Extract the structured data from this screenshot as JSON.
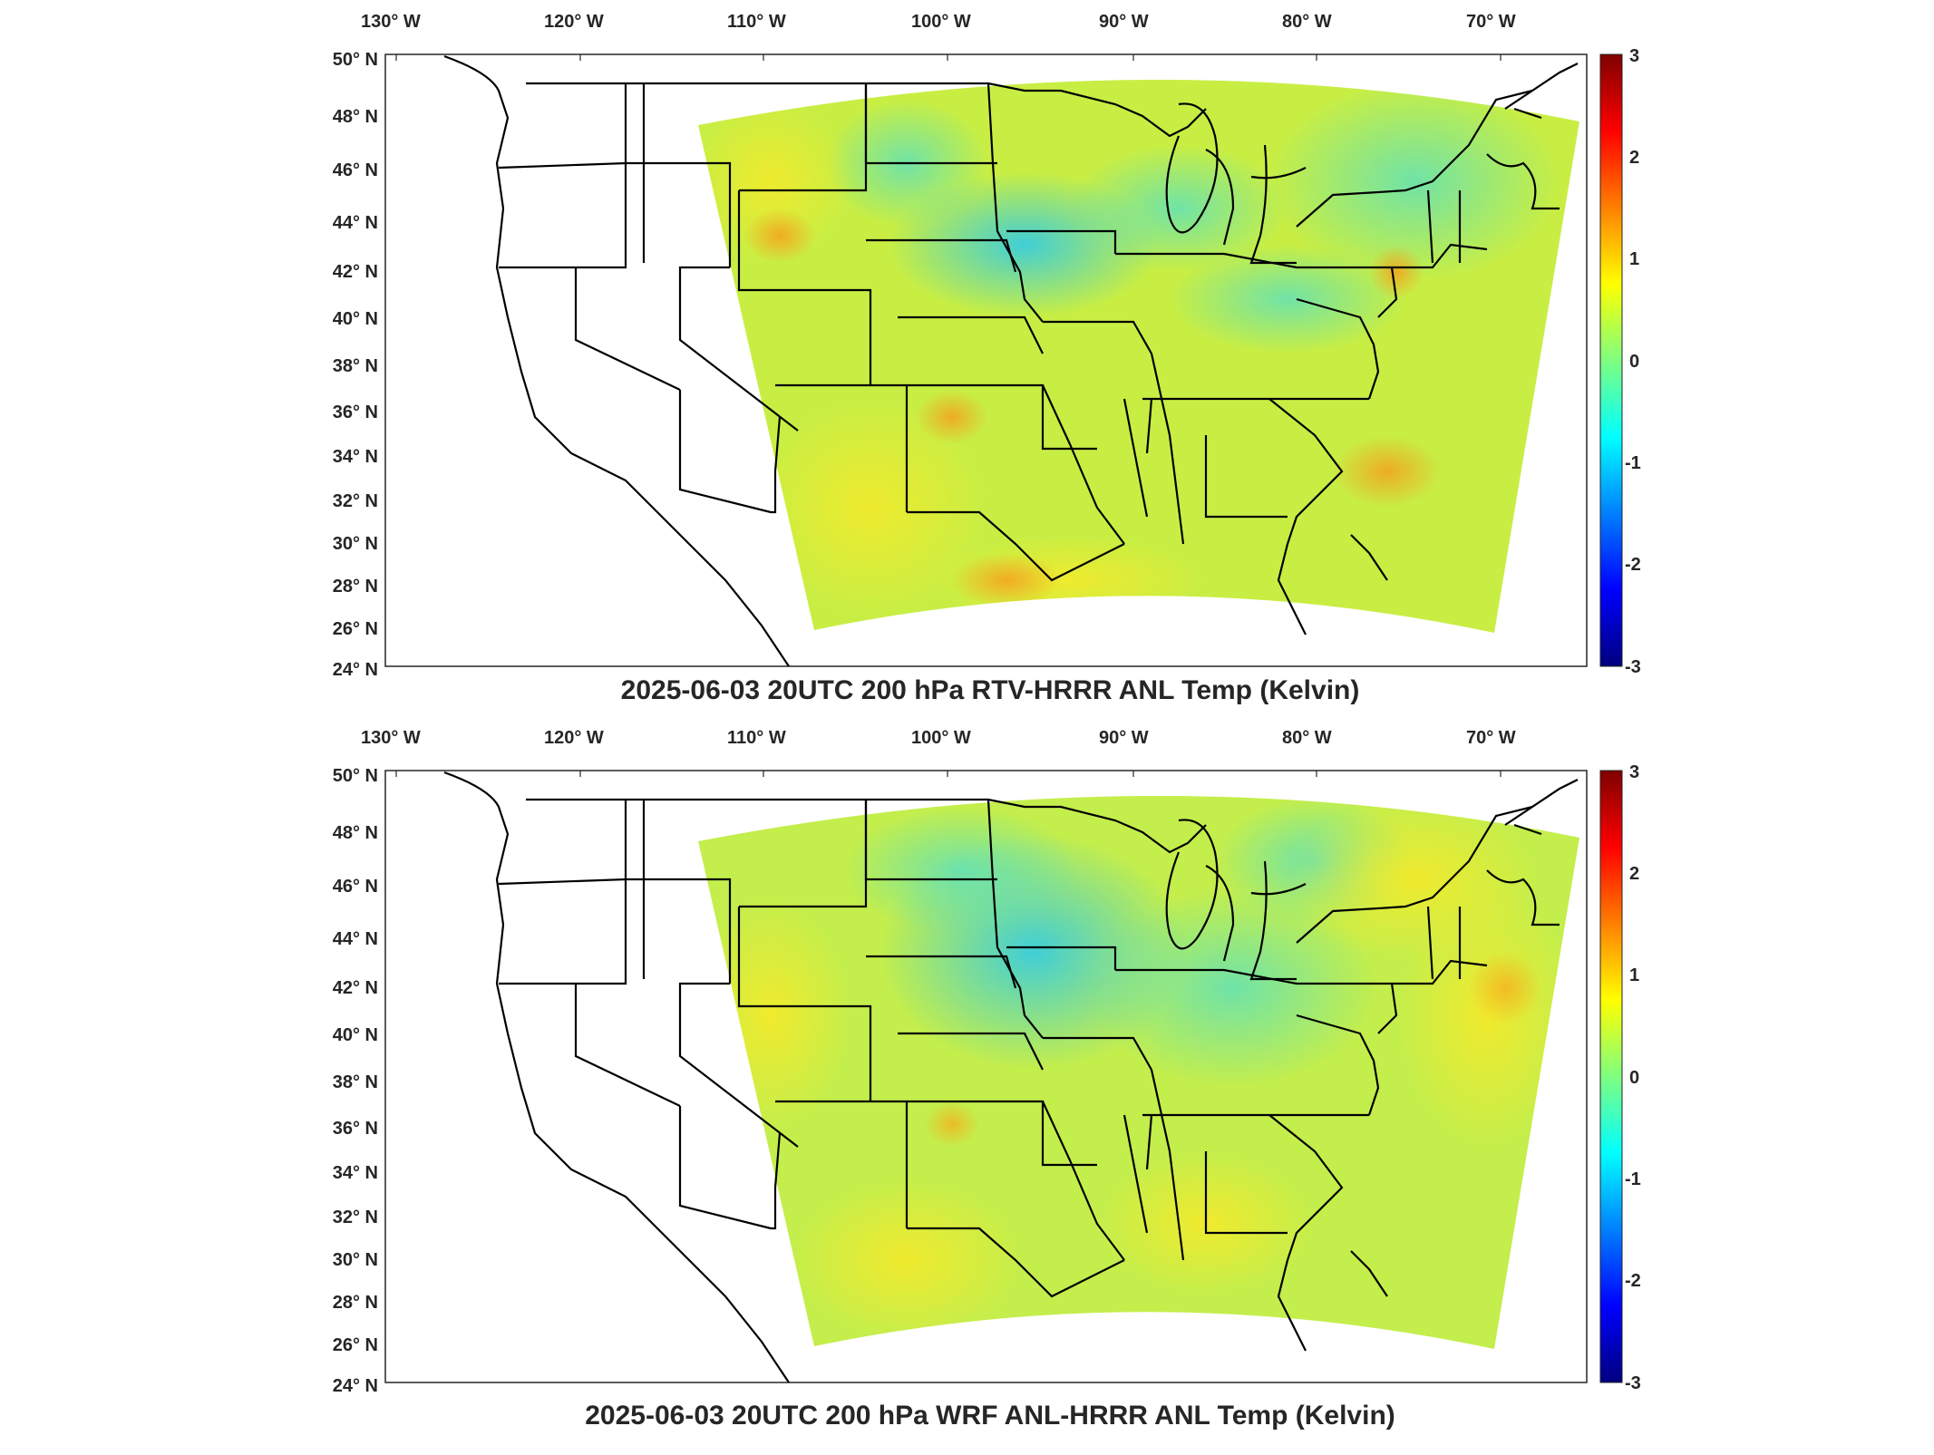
{
  "panels": [
    {
      "id": "top",
      "title": "2025-06-03 20UTC 200 hPa RTV-HRRR ANL Temp (Kelvin)",
      "lon_labels": [
        "130° W",
        "120° W",
        "110° W",
        "100° W",
        "90° W",
        "80° W",
        "70° W"
      ],
      "lat_labels": [
        "50° N",
        "48° N",
        "46° N",
        "44° N",
        "42° N",
        "40° N",
        "38° N",
        "36° N",
        "34° N",
        "32° N",
        "30° N",
        "28° N",
        "26° N",
        "24° N"
      ],
      "colorbar": {
        "ticks": [
          "3",
          "2",
          "1",
          "0",
          "-1",
          "-2",
          "-3"
        ],
        "min": -3,
        "max": 3,
        "colormap": "jet"
      }
    },
    {
      "id": "bottom",
      "title": "2025-06-03 20UTC 200 hPa WRF ANL-HRRR ANL Temp (Kelvin)",
      "lon_labels": [
        "130° W",
        "120° W",
        "110° W",
        "100° W",
        "90° W",
        "80° W",
        "70° W"
      ],
      "lat_labels": [
        "50° N",
        "48° N",
        "46° N",
        "44° N",
        "42° N",
        "40° N",
        "38° N",
        "36° N",
        "34° N",
        "32° N",
        "30° N",
        "28° N",
        "26° N",
        "24° N"
      ],
      "colorbar": {
        "ticks": [
          "3",
          "2",
          "1",
          "0",
          "-1",
          "-2",
          "-3"
        ],
        "min": -3,
        "max": 3,
        "colormap": "jet"
      }
    }
  ],
  "colors": {
    "field_base": "#c8f03c",
    "field_warm": "#f0e62a",
    "field_cool": "#6ee6a0",
    "field_cold": "#28c8f0",
    "field_hot": "#f5a01e",
    "boundary": "#000000"
  }
}
